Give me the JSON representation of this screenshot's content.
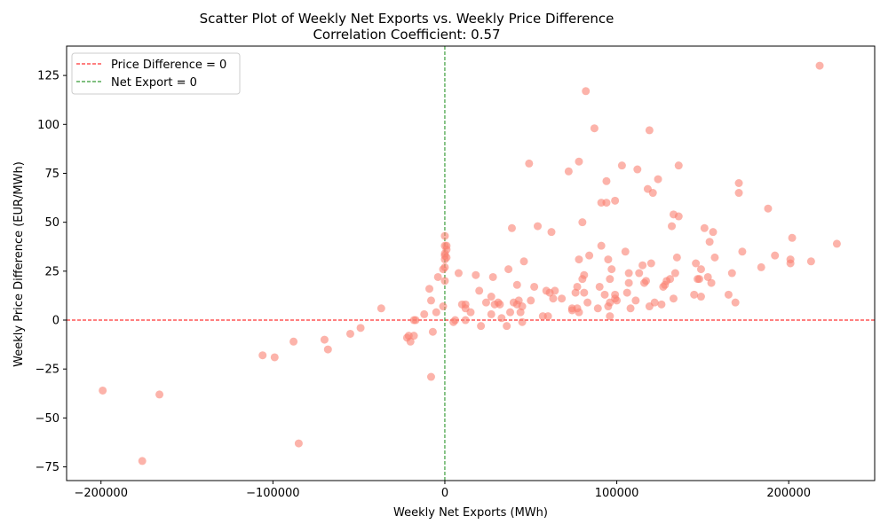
{
  "chart_data": {
    "type": "scatter",
    "title": "Scatter Plot of Weekly Net Exports vs. Weekly Price Difference",
    "subtitle": "Correlation Coefficient: 0.57",
    "xlabel": "Weekly Net Exports (MWh)",
    "ylabel": "Weekly Price Difference (EUR/MWh)",
    "xlim": [
      -220000,
      250000
    ],
    "ylim": [
      -82,
      140
    ],
    "xticks": [
      -200000,
      -100000,
      0,
      100000,
      200000
    ],
    "xtick_labels": [
      "−200000",
      "−100000",
      "0",
      "100000",
      "200000"
    ],
    "yticks": [
      -75,
      -50,
      -25,
      0,
      25,
      50,
      75,
      100,
      125
    ],
    "ytick_labels": [
      "−75",
      "−50",
      "−25",
      "0",
      "25",
      "50",
      "75",
      "100",
      "125"
    ],
    "grid": false,
    "legend_position": "top-left",
    "point_color": "#fa8072",
    "reference_lines": [
      {
        "label": "Price Difference = 0",
        "orientation": "horizontal",
        "value": 0,
        "color": "#ff0000",
        "style": "dashed"
      },
      {
        "label": "Net Export = 0",
        "orientation": "vertical",
        "value": 0,
        "color": "#008000",
        "style": "dashed"
      }
    ],
    "points": [
      [
        -199000,
        -36
      ],
      [
        -176000,
        -72
      ],
      [
        -166000,
        -38
      ],
      [
        -106000,
        -18
      ],
      [
        -99000,
        -19
      ],
      [
        -88000,
        -11
      ],
      [
        -85000,
        -63
      ],
      [
        -70000,
        -10
      ],
      [
        -68000,
        -15
      ],
      [
        -55000,
        -7
      ],
      [
        -49000,
        -4
      ],
      [
        -37000,
        6
      ],
      [
        -22000,
        -9
      ],
      [
        -21000,
        -8
      ],
      [
        -20000,
        -11
      ],
      [
        -18000,
        0
      ],
      [
        -17000,
        0
      ],
      [
        -18000,
        -8
      ],
      [
        -12000,
        3
      ],
      [
        -9000,
        16
      ],
      [
        -8000,
        10
      ],
      [
        -7000,
        -6
      ],
      [
        -8000,
        -29
      ],
      [
        -5000,
        4
      ],
      [
        -4000,
        22
      ],
      [
        -1000,
        26
      ],
      [
        -1000,
        7
      ],
      [
        0,
        31
      ],
      [
        0,
        33
      ],
      [
        0,
        34
      ],
      [
        0,
        38
      ],
      [
        0,
        43
      ],
      [
        0,
        20
      ],
      [
        0,
        27
      ],
      [
        1000,
        38
      ],
      [
        1000,
        36
      ],
      [
        1000,
        32
      ],
      [
        5000,
        -1
      ],
      [
        6000,
        0
      ],
      [
        8000,
        24
      ],
      [
        10000,
        8
      ],
      [
        12000,
        0
      ],
      [
        12000,
        8
      ],
      [
        12000,
        6
      ],
      [
        15000,
        4
      ],
      [
        18000,
        23
      ],
      [
        20000,
        15
      ],
      [
        21000,
        -3
      ],
      [
        24000,
        9
      ],
      [
        27000,
        12
      ],
      [
        27000,
        3
      ],
      [
        28000,
        22
      ],
      [
        29000,
        8
      ],
      [
        31000,
        9
      ],
      [
        32000,
        8
      ],
      [
        33000,
        1
      ],
      [
        36000,
        -3
      ],
      [
        37000,
        26
      ],
      [
        38000,
        4
      ],
      [
        39000,
        47
      ],
      [
        40000,
        9
      ],
      [
        42000,
        8
      ],
      [
        42000,
        18
      ],
      [
        43000,
        10
      ],
      [
        44000,
        4
      ],
      [
        45000,
        7
      ],
      [
        45000,
        -1
      ],
      [
        46000,
        30
      ],
      [
        49000,
        80
      ],
      [
        50000,
        10
      ],
      [
        52000,
        17
      ],
      [
        54000,
        48
      ],
      [
        57000,
        2
      ],
      [
        59000,
        15
      ],
      [
        60000,
        2
      ],
      [
        61000,
        14
      ],
      [
        62000,
        45
      ],
      [
        63000,
        11
      ],
      [
        64000,
        15
      ],
      [
        68000,
        11
      ],
      [
        72000,
        76
      ],
      [
        74000,
        6
      ],
      [
        74000,
        5
      ],
      [
        76000,
        14
      ],
      [
        77000,
        17
      ],
      [
        77000,
        6
      ],
      [
        78000,
        81
      ],
      [
        78000,
        4
      ],
      [
        78000,
        31
      ],
      [
        80000,
        50
      ],
      [
        80000,
        21
      ],
      [
        81000,
        14
      ],
      [
        81000,
        23
      ],
      [
        82000,
        117
      ],
      [
        83000,
        9
      ],
      [
        84000,
        33
      ],
      [
        87000,
        98
      ],
      [
        89000,
        6
      ],
      [
        90000,
        17
      ],
      [
        91000,
        60
      ],
      [
        91000,
        38
      ],
      [
        93000,
        13
      ],
      [
        94000,
        71
      ],
      [
        94000,
        60
      ],
      [
        95000,
        31
      ],
      [
        95000,
        7
      ],
      [
        96000,
        21
      ],
      [
        96000,
        9
      ],
      [
        97000,
        26
      ],
      [
        96000,
        2
      ],
      [
        99000,
        61
      ],
      [
        99000,
        13
      ],
      [
        99000,
        11
      ],
      [
        100000,
        10
      ],
      [
        103000,
        79
      ],
      [
        105000,
        35
      ],
      [
        106000,
        14
      ],
      [
        107000,
        24
      ],
      [
        107000,
        19
      ],
      [
        108000,
        6
      ],
      [
        111000,
        10
      ],
      [
        112000,
        77
      ],
      [
        113000,
        24
      ],
      [
        115000,
        28
      ],
      [
        116000,
        19
      ],
      [
        117000,
        20
      ],
      [
        118000,
        67
      ],
      [
        119000,
        97
      ],
      [
        119000,
        7
      ],
      [
        120000,
        29
      ],
      [
        121000,
        65
      ],
      [
        122000,
        9
      ],
      [
        124000,
        72
      ],
      [
        126000,
        8
      ],
      [
        127000,
        17
      ],
      [
        128000,
        18
      ],
      [
        129000,
        20
      ],
      [
        131000,
        21
      ],
      [
        132000,
        48
      ],
      [
        133000,
        11
      ],
      [
        133000,
        54
      ],
      [
        134000,
        24
      ],
      [
        135000,
        32
      ],
      [
        136000,
        79
      ],
      [
        136000,
        53
      ],
      [
        145000,
        13
      ],
      [
        146000,
        29
      ],
      [
        147000,
        21
      ],
      [
        148000,
        21
      ],
      [
        149000,
        12
      ],
      [
        149000,
        26
      ],
      [
        151000,
        47
      ],
      [
        153000,
        22
      ],
      [
        154000,
        40
      ],
      [
        155000,
        19
      ],
      [
        156000,
        45
      ],
      [
        157000,
        32
      ],
      [
        165000,
        13
      ],
      [
        167000,
        24
      ],
      [
        169000,
        9
      ],
      [
        171000,
        70
      ],
      [
        171000,
        65
      ],
      [
        173000,
        35
      ],
      [
        184000,
        27
      ],
      [
        188000,
        57
      ],
      [
        192000,
        33
      ],
      [
        201000,
        31
      ],
      [
        201000,
        29
      ],
      [
        202000,
        42
      ],
      [
        213000,
        30
      ],
      [
        218000,
        130
      ],
      [
        228000,
        39
      ]
    ]
  }
}
